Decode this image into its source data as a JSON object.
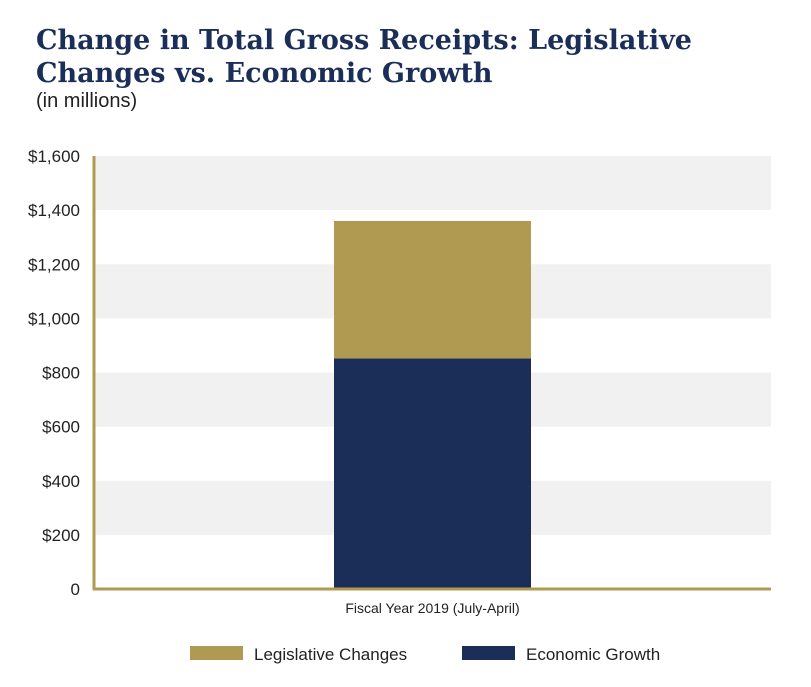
{
  "chart_data": {
    "type": "bar",
    "stacked": true,
    "title": "Change in Total Gross Receipts: Legislative Changes vs. Economic Growth",
    "subtitle": "(in millions)",
    "categories": [
      "Fiscal Year 2019 (July-April)"
    ],
    "series": [
      {
        "name": "Economic Growth",
        "values": [
          852
        ],
        "color": "#1b2e58"
      },
      {
        "name": "Legislative Changes",
        "values": [
          508
        ],
        "color": "#b09a52"
      }
    ],
    "ylim": [
      0,
      1600
    ],
    "yticks": [
      {
        "value": 0,
        "label": "0"
      },
      {
        "value": 200,
        "label": "$200"
      },
      {
        "value": 400,
        "label": "$400"
      },
      {
        "value": 600,
        "label": "$600"
      },
      {
        "value": 800,
        "label": "$800"
      },
      {
        "value": 1000,
        "label": "$1,000"
      },
      {
        "value": 1200,
        "label": "$1,200"
      },
      {
        "value": 1400,
        "label": "$1,400"
      },
      {
        "value": 1600,
        "label": "$1,600"
      }
    ],
    "grid": "alternating horizontal bands",
    "legend": {
      "placement": "bottom",
      "items": [
        {
          "name": "Legislative Changes",
          "color": "#b09a52"
        },
        {
          "name": "Economic Growth",
          "color": "#1b2e58"
        }
      ]
    },
    "axis_color": "#b09a52",
    "band_color": "#f1f1f1"
  }
}
